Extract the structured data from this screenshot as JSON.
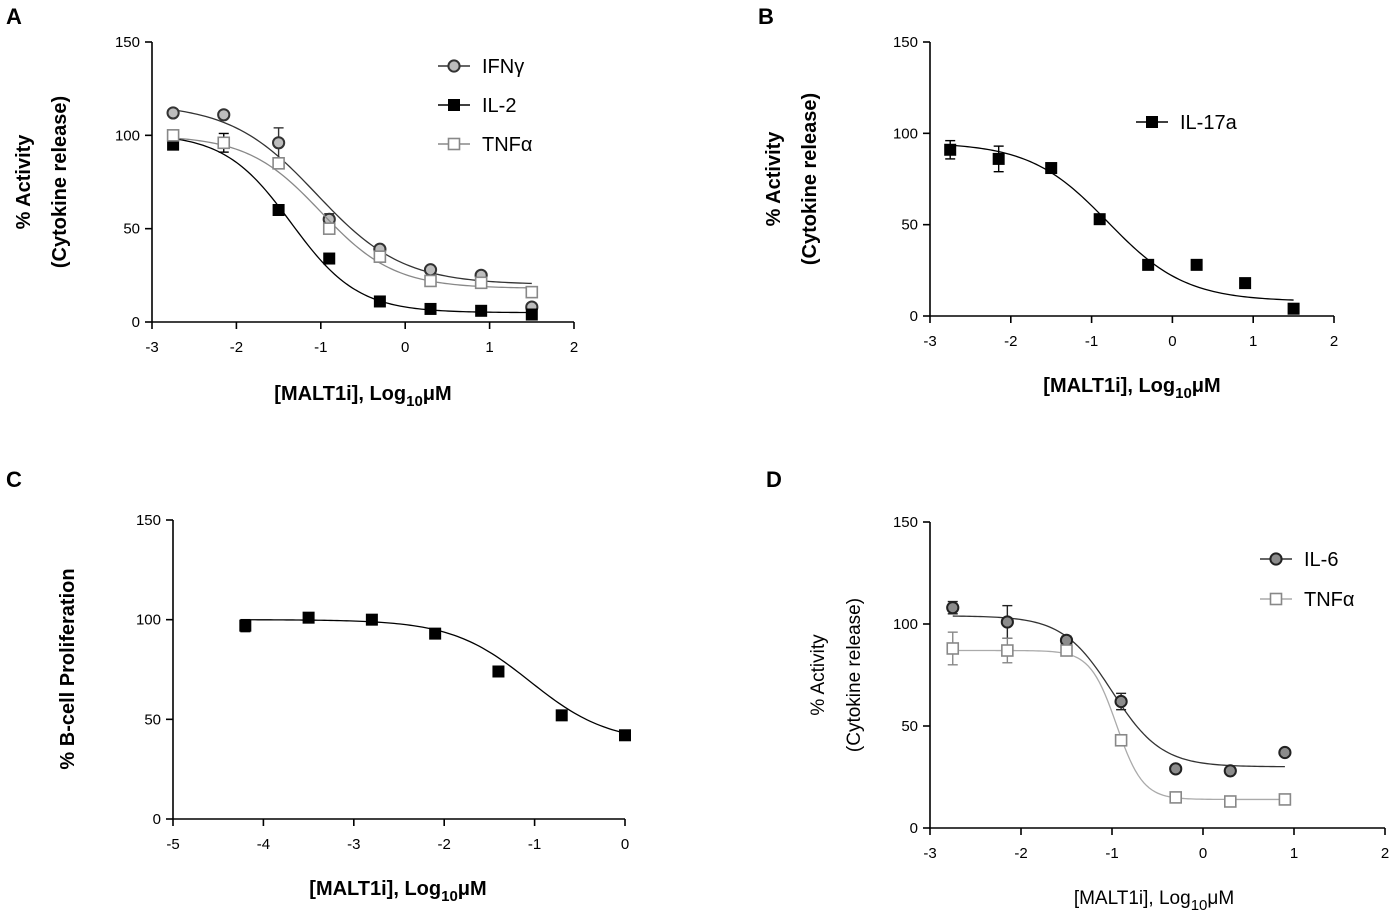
{
  "chart_data": [
    {
      "panel": "A",
      "type": "scatter",
      "fit": "sigmoidal dose-response",
      "xlabel": "[MALT1i], Log",
      "xlabel_sub": "10",
      "xlabel_unit": "μM",
      "ylabel_line1": "% Activity",
      "ylabel_line2": "(Cytokine release)",
      "xlim": [
        -3,
        2
      ],
      "ylim": [
        0,
        150
      ],
      "xticks": [
        -3,
        -2,
        -1,
        0,
        1,
        2
      ],
      "yticks": [
        0,
        50,
        100,
        150
      ],
      "legend_position": "top-right",
      "series": [
        {
          "name": "IFNγ",
          "marker": "circle",
          "color": "#333333",
          "fill": "#bdbdbd",
          "line_color": "#333333",
          "x": [
            -2.75,
            -2.15,
            -1.5,
            -0.9,
            -0.3,
            0.3,
            0.9,
            1.5
          ],
          "y": [
            112,
            111,
            96,
            55,
            39,
            28,
            25,
            8
          ],
          "err": [
            0,
            0,
            8,
            3,
            0,
            0,
            0,
            0
          ],
          "fit": {
            "bottom": 20,
            "top": 117,
            "logEC50": -1.05,
            "hill": 0.85
          }
        },
        {
          "name": "IL-2",
          "marker": "square",
          "color": "#000000",
          "fill": "#000000",
          "line_color": "#000000",
          "x": [
            -2.75,
            -2.15,
            -1.5,
            -0.9,
            -0.3,
            0.3,
            0.9,
            1.5
          ],
          "y": [
            95,
            96,
            60,
            34,
            11,
            7,
            6,
            4
          ],
          "err": [
            0,
            5,
            0,
            0,
            0,
            0,
            0,
            0
          ],
          "fit": {
            "bottom": 5,
            "top": 101,
            "logEC50": -1.35,
            "hill": 1.1
          }
        },
        {
          "name": "TNFα",
          "marker": "open-square",
          "color": "#888888",
          "fill": "#ffffff",
          "line_color": "#888888",
          "x": [
            -2.75,
            -2.15,
            -1.5,
            -0.9,
            -0.3,
            0.3,
            0.9,
            1.5
          ],
          "y": [
            100,
            96,
            85,
            50,
            35,
            22,
            21,
            16
          ],
          "err": [
            0,
            0,
            0,
            0,
            0,
            0,
            0,
            0
          ],
          "fit": {
            "bottom": 18,
            "top": 100,
            "logEC50": -1.0,
            "hill": 1.0
          }
        }
      ]
    },
    {
      "panel": "B",
      "type": "scatter",
      "fit": "sigmoidal dose-response",
      "xlabel": "[MALT1i], Log",
      "xlabel_sub": "10",
      "xlabel_unit": "μM",
      "ylabel_line1": "% Activity",
      "ylabel_line2": "(Cytokine release)",
      "xlim": [
        -3,
        2
      ],
      "ylim": [
        0,
        150
      ],
      "xticks": [
        -3,
        -2,
        -1,
        0,
        1,
        2
      ],
      "yticks": [
        0,
        50,
        100,
        150
      ],
      "legend_position": "top-right",
      "series": [
        {
          "name": "IL-17a",
          "marker": "square",
          "color": "#000000",
          "fill": "#000000",
          "line_color": "#000000",
          "x": [
            -2.75,
            -2.15,
            -1.5,
            -0.9,
            -0.3,
            0.3,
            0.9,
            1.5
          ],
          "y": [
            91,
            86,
            81,
            53,
            28,
            28,
            18,
            4
          ],
          "err": [
            5,
            7,
            0,
            0,
            0,
            0,
            0,
            0
          ],
          "fit": {
            "bottom": 8,
            "top": 95,
            "logEC50": -0.8,
            "hill": 0.9
          }
        }
      ]
    },
    {
      "panel": "C",
      "type": "scatter",
      "fit": "sigmoidal dose-response",
      "xlabel": "[MALT1i], Log",
      "xlabel_sub": "10",
      "xlabel_unit": "μM",
      "ylabel_line1": "% B-cell Proliferation",
      "ylabel_line2": "",
      "xlim": [
        -5,
        0
      ],
      "ylim": [
        0,
        150
      ],
      "xticks": [
        -5,
        -4,
        -3,
        -2,
        -1,
        0
      ],
      "yticks": [
        0,
        50,
        100,
        150
      ],
      "legend_position": "none",
      "series": [
        {
          "name": "B-cell",
          "marker": "square",
          "color": "#000000",
          "fill": "#000000",
          "line_color": "#000000",
          "x": [
            -4.2,
            -3.5,
            -2.8,
            -2.1,
            -1.4,
            -0.7,
            0
          ],
          "y": [
            97,
            101,
            100,
            93,
            74,
            52,
            42
          ],
          "err": [
            3,
            0,
            0,
            0,
            0,
            0,
            0
          ],
          "fit": {
            "bottom": 38,
            "top": 100,
            "logEC50": -1.05,
            "hill": 1.0
          }
        }
      ]
    },
    {
      "panel": "D",
      "type": "scatter",
      "fit": "sigmoidal dose-response",
      "xlabel": "[MALT1i], Log",
      "xlabel_sub": "10",
      "xlabel_unit": "μM",
      "ylabel_line1": "% Activity",
      "ylabel_line2": "(Cytokine release)",
      "xlim": [
        -3,
        2
      ],
      "ylim": [
        0,
        150
      ],
      "xticks": [
        -3,
        -2,
        -1,
        0,
        1,
        2
      ],
      "yticks": [
        0,
        50,
        100,
        150
      ],
      "legend_position": "top-right",
      "series": [
        {
          "name": "IL-6",
          "marker": "circle",
          "color": "#222222",
          "fill": "#8c8c8c",
          "line_color": "#333333",
          "x": [
            -2.75,
            -2.15,
            -1.5,
            -0.9,
            -0.3,
            0.3,
            0.9
          ],
          "y": [
            108,
            101,
            92,
            62,
            29,
            28,
            37
          ],
          "err": [
            3,
            8,
            2,
            4,
            0,
            0,
            0
          ],
          "fit": {
            "bottom": 30,
            "top": 104,
            "logEC50": -1.0,
            "hill": 1.6
          }
        },
        {
          "name": "TNFα",
          "marker": "open-square",
          "color": "#888888",
          "fill": "#ffffff",
          "line_color": "#aaaaaa",
          "x": [
            -2.75,
            -2.15,
            -1.5,
            -0.9,
            -0.3,
            0.3,
            0.9
          ],
          "y": [
            88,
            87,
            87,
            43,
            15,
            13,
            14
          ],
          "err": [
            8,
            6,
            0,
            0,
            0,
            0,
            0
          ],
          "fit": {
            "bottom": 14,
            "top": 87,
            "logEC50": -0.95,
            "hill": 3.0
          }
        }
      ]
    }
  ]
}
